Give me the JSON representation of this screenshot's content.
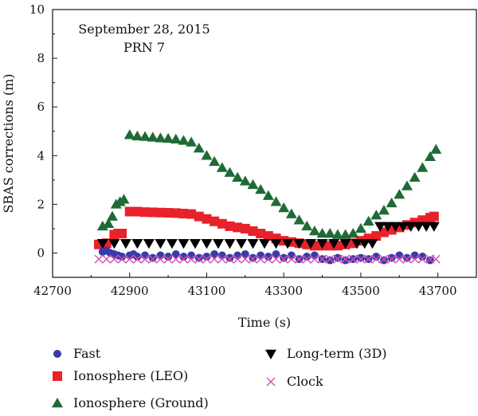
{
  "chart_data": {
    "type": "scatter",
    "title": "",
    "annotation": [
      "September 28, 2015",
      "PRN 7"
    ],
    "xlabel": "Time (s)",
    "ylabel": "SBAS corrections (m)",
    "xlim": [
      42700,
      43800
    ],
    "ylim": [
      -1,
      10
    ],
    "xticks": [
      42700,
      42900,
      43100,
      43300,
      43500,
      43700
    ],
    "yticks": [
      0,
      2,
      4,
      6,
      8,
      10
    ],
    "legend_placement": "bottom",
    "series": [
      {
        "name": "Fast",
        "marker": "circle",
        "color": "#3a3aa8",
        "points": [
          [
            42830,
            0.05
          ],
          [
            42840,
            0.1
          ],
          [
            42850,
            0.0
          ],
          [
            42860,
            -0.05
          ],
          [
            42870,
            -0.1
          ],
          [
            42880,
            -0.15
          ],
          [
            42900,
            -0.1
          ],
          [
            42910,
            -0.05
          ],
          [
            42920,
            -0.15
          ],
          [
            42940,
            -0.1
          ],
          [
            42960,
            -0.2
          ],
          [
            42980,
            -0.1
          ],
          [
            43000,
            -0.15
          ],
          [
            43020,
            -0.05
          ],
          [
            43040,
            -0.15
          ],
          [
            43060,
            -0.1
          ],
          [
            43080,
            -0.2
          ],
          [
            43100,
            -0.15
          ],
          [
            43120,
            -0.05
          ],
          [
            43140,
            -0.1
          ],
          [
            43160,
            -0.2
          ],
          [
            43180,
            -0.1
          ],
          [
            43200,
            -0.05
          ],
          [
            43220,
            -0.2
          ],
          [
            43240,
            -0.1
          ],
          [
            43260,
            -0.15
          ],
          [
            43280,
            -0.05
          ],
          [
            43300,
            -0.2
          ],
          [
            43320,
            -0.1
          ],
          [
            43340,
            -0.25
          ],
          [
            43360,
            -0.15
          ],
          [
            43380,
            -0.1
          ],
          [
            43400,
            -0.25
          ],
          [
            43420,
            -0.3
          ],
          [
            43440,
            -0.2
          ],
          [
            43460,
            -0.3
          ],
          [
            43480,
            -0.25
          ],
          [
            43500,
            -0.2
          ],
          [
            43520,
            -0.25
          ],
          [
            43540,
            -0.15
          ],
          [
            43560,
            -0.3
          ],
          [
            43580,
            -0.2
          ],
          [
            43600,
            -0.1
          ],
          [
            43620,
            -0.2
          ],
          [
            43640,
            -0.1
          ],
          [
            43660,
            -0.15
          ],
          [
            43680,
            -0.3
          ]
        ]
      },
      {
        "name": "Ionosphere (LEO)",
        "marker": "square",
        "color": "#e8212b",
        "points": [
          [
            42820,
            0.35
          ],
          [
            42840,
            0.4
          ],
          [
            42860,
            0.75
          ],
          [
            42870,
            0.8
          ],
          [
            42880,
            0.8
          ],
          [
            42900,
            1.7
          ],
          [
            42920,
            1.7
          ],
          [
            42940,
            1.68
          ],
          [
            42960,
            1.67
          ],
          [
            42980,
            1.66
          ],
          [
            43000,
            1.65
          ],
          [
            43020,
            1.64
          ],
          [
            43040,
            1.62
          ],
          [
            43060,
            1.6
          ],
          [
            43080,
            1.5
          ],
          [
            43100,
            1.4
          ],
          [
            43120,
            1.3
          ],
          [
            43140,
            1.2
          ],
          [
            43160,
            1.1
          ],
          [
            43180,
            1.05
          ],
          [
            43200,
            1.0
          ],
          [
            43220,
            0.9
          ],
          [
            43240,
            0.8
          ],
          [
            43260,
            0.7
          ],
          [
            43280,
            0.6
          ],
          [
            43300,
            0.5
          ],
          [
            43320,
            0.45
          ],
          [
            43340,
            0.4
          ],
          [
            43360,
            0.35
          ],
          [
            43380,
            0.3
          ],
          [
            43400,
            0.3
          ],
          [
            43420,
            0.3
          ],
          [
            43440,
            0.3
          ],
          [
            43460,
            0.35
          ],
          [
            43480,
            0.4
          ],
          [
            43500,
            0.5
          ],
          [
            43520,
            0.6
          ],
          [
            43540,
            0.7
          ],
          [
            43560,
            0.85
          ],
          [
            43580,
            0.95
          ],
          [
            43600,
            1.05
          ],
          [
            43620,
            1.15
          ],
          [
            43640,
            1.25
          ],
          [
            43660,
            1.35
          ],
          [
            43680,
            1.45
          ],
          [
            43690,
            1.5
          ]
        ]
      },
      {
        "name": "Ionosphere (Ground)",
        "marker": "triangle-up",
        "color": "#1e6b36",
        "points": [
          [
            42830,
            1.1
          ],
          [
            42845,
            1.2
          ],
          [
            42855,
            1.5
          ],
          [
            42865,
            2.0
          ],
          [
            42875,
            2.1
          ],
          [
            42885,
            2.2
          ],
          [
            42900,
            4.85
          ],
          [
            42920,
            4.8
          ],
          [
            42940,
            4.78
          ],
          [
            42960,
            4.75
          ],
          [
            42980,
            4.72
          ],
          [
            43000,
            4.7
          ],
          [
            43020,
            4.67
          ],
          [
            43040,
            4.62
          ],
          [
            43060,
            4.55
          ],
          [
            43080,
            4.3
          ],
          [
            43100,
            4.0
          ],
          [
            43120,
            3.75
          ],
          [
            43140,
            3.5
          ],
          [
            43160,
            3.3
          ],
          [
            43180,
            3.1
          ],
          [
            43200,
            2.95
          ],
          [
            43220,
            2.8
          ],
          [
            43240,
            2.6
          ],
          [
            43260,
            2.35
          ],
          [
            43280,
            2.1
          ],
          [
            43300,
            1.85
          ],
          [
            43320,
            1.6
          ],
          [
            43340,
            1.35
          ],
          [
            43360,
            1.1
          ],
          [
            43380,
            0.9
          ],
          [
            43400,
            0.8
          ],
          [
            43420,
            0.8
          ],
          [
            43440,
            0.75
          ],
          [
            43460,
            0.75
          ],
          [
            43480,
            0.8
          ],
          [
            43500,
            1.0
          ],
          [
            43520,
            1.3
          ],
          [
            43540,
            1.55
          ],
          [
            43560,
            1.75
          ],
          [
            43580,
            2.05
          ],
          [
            43600,
            2.4
          ],
          [
            43620,
            2.75
          ],
          [
            43640,
            3.1
          ],
          [
            43660,
            3.5
          ],
          [
            43680,
            3.95
          ],
          [
            43695,
            4.25
          ]
        ]
      },
      {
        "name": "Long-term (3D)",
        "marker": "triangle-down",
        "color": "#000000",
        "points": [
          [
            42830,
            0.4
          ],
          [
            42860,
            0.4
          ],
          [
            42890,
            0.4
          ],
          [
            42920,
            0.4
          ],
          [
            42950,
            0.4
          ],
          [
            42980,
            0.4
          ],
          [
            43010,
            0.4
          ],
          [
            43040,
            0.4
          ],
          [
            43070,
            0.4
          ],
          [
            43100,
            0.4
          ],
          [
            43130,
            0.4
          ],
          [
            43160,
            0.4
          ],
          [
            43190,
            0.4
          ],
          [
            43220,
            0.4
          ],
          [
            43250,
            0.4
          ],
          [
            43280,
            0.4
          ],
          [
            43310,
            0.4
          ],
          [
            43340,
            0.4
          ],
          [
            43370,
            0.4
          ],
          [
            43400,
            0.4
          ],
          [
            43430,
            0.4
          ],
          [
            43460,
            0.4
          ],
          [
            43490,
            0.4
          ],
          [
            43510,
            0.4
          ],
          [
            43530,
            0.4
          ],
          [
            43550,
            1.1
          ],
          [
            43570,
            1.1
          ],
          [
            43590,
            1.1
          ],
          [
            43610,
            1.1
          ],
          [
            43630,
            1.1
          ],
          [
            43650,
            1.1
          ],
          [
            43670,
            1.1
          ],
          [
            43690,
            1.1
          ]
        ]
      },
      {
        "name": "Clock",
        "marker": "x",
        "color": "#d24fb0",
        "points": [
          [
            42820,
            -0.25
          ],
          [
            42840,
            -0.25
          ],
          [
            42860,
            -0.25
          ],
          [
            42880,
            -0.25
          ],
          [
            42900,
            -0.25
          ],
          [
            42920,
            -0.25
          ],
          [
            42940,
            -0.25
          ],
          [
            42960,
            -0.25
          ],
          [
            42980,
            -0.25
          ],
          [
            43000,
            -0.25
          ],
          [
            43020,
            -0.25
          ],
          [
            43040,
            -0.25
          ],
          [
            43060,
            -0.25
          ],
          [
            43080,
            -0.25
          ],
          [
            43100,
            -0.25
          ],
          [
            43120,
            -0.25
          ],
          [
            43140,
            -0.25
          ],
          [
            43160,
            -0.25
          ],
          [
            43180,
            -0.25
          ],
          [
            43200,
            -0.25
          ],
          [
            43220,
            -0.25
          ],
          [
            43240,
            -0.25
          ],
          [
            43260,
            -0.25
          ],
          [
            43280,
            -0.25
          ],
          [
            43300,
            -0.25
          ],
          [
            43320,
            -0.25
          ],
          [
            43340,
            -0.25
          ],
          [
            43360,
            -0.25
          ],
          [
            43380,
            -0.25
          ],
          [
            43400,
            -0.25
          ],
          [
            43420,
            -0.25
          ],
          [
            43440,
            -0.25
          ],
          [
            43460,
            -0.25
          ],
          [
            43480,
            -0.25
          ],
          [
            43500,
            -0.25
          ],
          [
            43520,
            -0.25
          ],
          [
            43540,
            -0.25
          ],
          [
            43560,
            -0.25
          ],
          [
            43580,
            -0.25
          ],
          [
            43600,
            -0.25
          ],
          [
            43620,
            -0.25
          ],
          [
            43640,
            -0.25
          ],
          [
            43660,
            -0.25
          ],
          [
            43680,
            -0.25
          ],
          [
            43695,
            -0.25
          ]
        ]
      }
    ]
  }
}
